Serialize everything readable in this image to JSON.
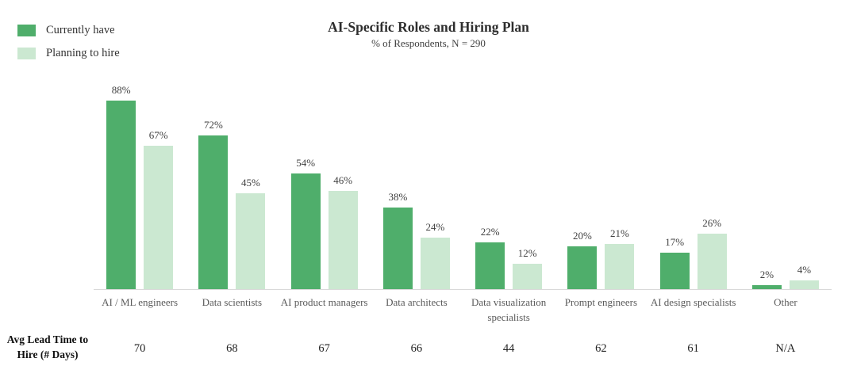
{
  "header": {
    "title": "AI-Specific Roles and Hiring Plan",
    "subtitle": "% of Respondents, N = 290"
  },
  "legend": {
    "items": [
      {
        "label": "Currently have",
        "color": "#4fae6b"
      },
      {
        "label": "Planning to hire",
        "color": "#cbe8d1"
      }
    ]
  },
  "lead_time": {
    "label_line1": "Avg Lead Time to",
    "label_line2": "Hire (# Days)"
  },
  "chart_data": {
    "type": "bar",
    "title": "AI-Specific Roles and Hiring Plan",
    "subtitle": "% of Respondents, N = 290",
    "categories": [
      "AI / ML engineers",
      "Data scientists",
      "AI product managers",
      "Data architects",
      "Data visualization specialists",
      "Prompt engineers",
      "AI design specialists",
      "Other"
    ],
    "series": [
      {
        "name": "Currently have",
        "color": "#4fae6b",
        "values": [
          88,
          72,
          54,
          38,
          22,
          20,
          17,
          2
        ]
      },
      {
        "name": "Planning to hire",
        "color": "#cbe8d1",
        "values": [
          67,
          45,
          46,
          24,
          12,
          21,
          26,
          4
        ]
      }
    ],
    "value_suffix": "%",
    "lead_times": [
      "70",
      "68",
      "67",
      "66",
      "44",
      "62",
      "61",
      "N/A"
    ],
    "xlabel": "",
    "ylabel": "% of Respondents",
    "ylim": [
      0,
      100
    ],
    "grid": false,
    "legend_position": "top-left",
    "baseline_color": "#d9d9d9"
  }
}
